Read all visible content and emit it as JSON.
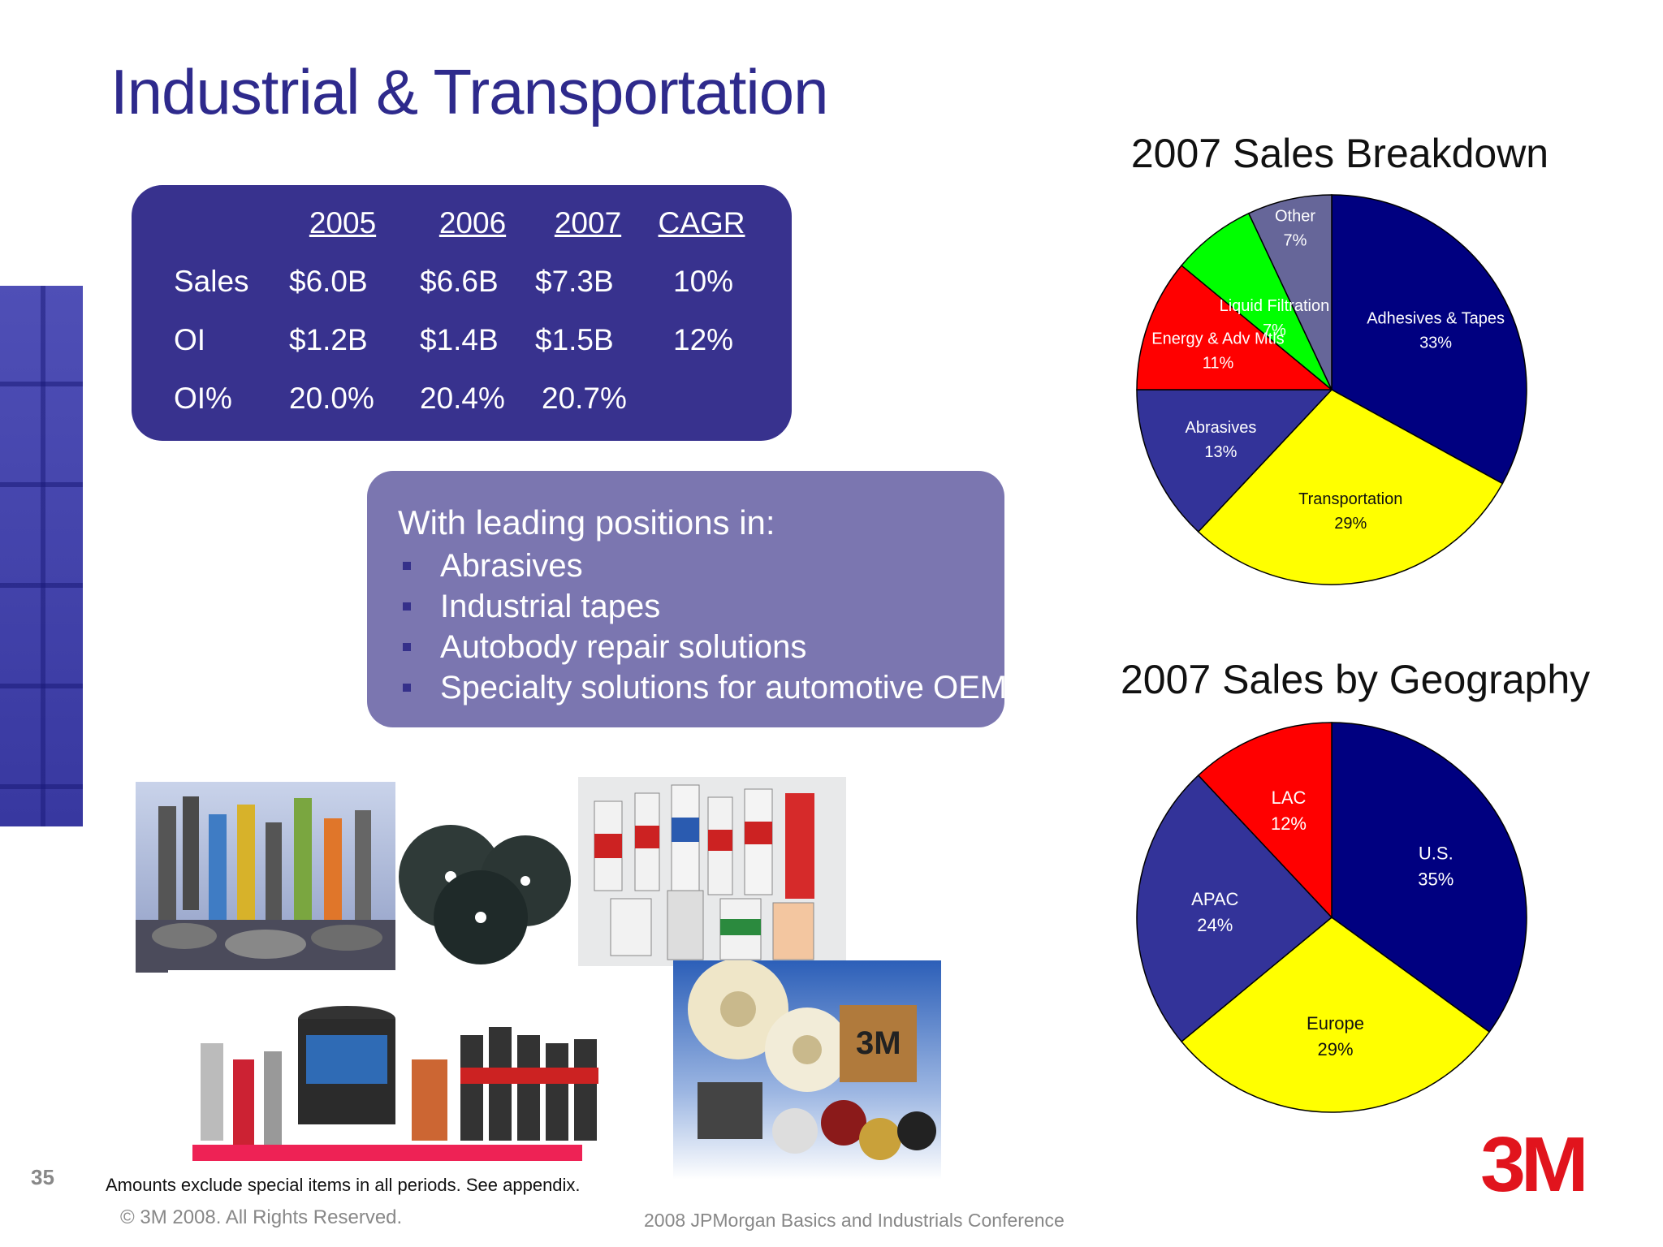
{
  "slide": {
    "title": "Industrial & Transportation",
    "page_number": "35",
    "footnote": "Amounts exclude special items in all periods. See appendix.",
    "copyright": "© 3M 2008.  All Rights Reserved.",
    "conference": "2008 JPMorgan Basics and Industrials Conference",
    "logo": "3M"
  },
  "financials": {
    "headers": [
      "2005",
      "2006",
      "2007",
      "CAGR"
    ],
    "rows": [
      {
        "label": "Sales",
        "values": [
          "$6.0B",
          "$6.6B",
          "$7.3B",
          "10%"
        ]
      },
      {
        "label": "OI",
        "values": [
          "$1.2B",
          "$1.4B",
          "$1.5B",
          "12%"
        ]
      },
      {
        "label": "OI%",
        "values": [
          "20.0%",
          "20.4%",
          "20.7%",
          ""
        ]
      }
    ]
  },
  "leading_positions": {
    "heading": "With leading positions in:",
    "items": [
      "Abrasives",
      "Industrial tapes",
      "Autobody repair solutions",
      "Specialty solutions for automotive OEMs"
    ]
  },
  "chart_data": [
    {
      "type": "pie",
      "title": "2007 Sales Breakdown",
      "slices": [
        {
          "label": "Adhesives & Tapes",
          "value": 33,
          "value_label": "33%",
          "color": "#000080"
        },
        {
          "label": "Transportation",
          "value": 29,
          "value_label": "29%",
          "color": "#ffff00"
        },
        {
          "label": "Abrasives",
          "value": 13,
          "value_label": "13%",
          "color": "#333399"
        },
        {
          "label": "Energy & Adv Mtls",
          "value": 11,
          "value_label": "11%",
          "color": "#ff0000"
        },
        {
          "label": "Liquid Filtration",
          "value": 7,
          "value_label": "7%",
          "color": "#00ff00"
        },
        {
          "label": "Other",
          "value": 7,
          "value_label": "7%",
          "color": "#666699"
        }
      ]
    },
    {
      "type": "pie",
      "title": "2007 Sales by Geography",
      "slices": [
        {
          "label": "U.S.",
          "value": 35,
          "value_label": "35%",
          "color": "#000080"
        },
        {
          "label": "Europe",
          "value": 29,
          "value_label": "29%",
          "color": "#ffff00"
        },
        {
          "label": "APAC",
          "value": 24,
          "value_label": "24%",
          "color": "#333399"
        },
        {
          "label": "LAC",
          "value": 12,
          "value_label": "12%",
          "color": "#ff0000"
        }
      ]
    }
  ],
  "photos": [
    {
      "name": "fasteners-photo"
    },
    {
      "name": "abrasive-discs-photo"
    },
    {
      "name": "spray-cans-photo"
    },
    {
      "name": "autobody-products-photo"
    },
    {
      "name": "tape-products-photo"
    }
  ]
}
